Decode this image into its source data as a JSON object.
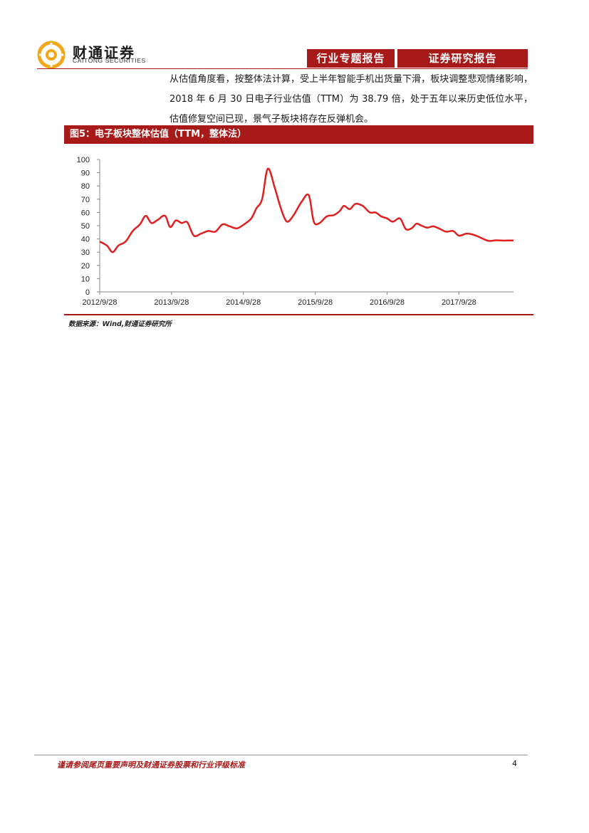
{
  "header": {
    "logo_cn": "财通证券",
    "logo_en": "CAITONG SECURITIES",
    "tab_left": "行业专题报告",
    "tab_right": "证券研究报告"
  },
  "body": {
    "paragraph": "从估值角度看，按整体法计算，受上半年智能手机出货量下滑，板块调整悲观情绪影响，2018 年 6 月 30 日电子行业估值（TTM）为 38.79 倍，处于五年以来历史低位水平，估值修复空间已现，景气子板块将存在反弹机会。"
  },
  "figure": {
    "title": "图5：电子板块整体估值（TTM，整体法）",
    "source": "数据来源：Wind,财通证券研究所"
  },
  "chart_data": {
    "type": "line",
    "title": "",
    "xlabel": "",
    "ylabel": "",
    "ylim": [
      0,
      100
    ],
    "yticks": [
      0,
      10,
      20,
      30,
      40,
      50,
      60,
      70,
      80,
      90,
      100
    ],
    "x_tick_labels": [
      "2012/9/28",
      "2013/9/28",
      "2014/9/28",
      "2015/9/28",
      "2016/9/28",
      "2017/9/28"
    ],
    "x_tick_years": [
      2012.74,
      2013.74,
      2014.74,
      2015.74,
      2016.74,
      2017.74
    ],
    "x_range": [
      2012.74,
      2018.5
    ],
    "grid": false,
    "color": "#e02020",
    "series": [
      {
        "x": [
          2012.74,
          2012.84,
          2012.92,
          2013.0,
          2013.1,
          2013.2,
          2013.3,
          2013.38,
          2013.46,
          2013.55,
          2013.65,
          2013.72,
          2013.8,
          2013.88,
          2013.96,
          2014.05,
          2014.15,
          2014.25,
          2014.35,
          2014.45,
          2014.55,
          2014.65,
          2014.75,
          2014.85,
          2014.92,
          2015.0,
          2015.08,
          2015.18,
          2015.25,
          2015.31,
          2015.36,
          2015.44,
          2015.55,
          2015.65,
          2015.72,
          2015.8,
          2015.9,
          2016.0,
          2016.08,
          2016.14,
          2016.22,
          2016.3,
          2016.4,
          2016.5,
          2016.58,
          2016.66,
          2016.74,
          2016.82,
          2016.92,
          2017.0,
          2017.08,
          2017.15,
          2017.22,
          2017.3,
          2017.38,
          2017.46,
          2017.56,
          2017.66,
          2017.74,
          2017.84,
          2017.92,
          2018.0,
          2018.08,
          2018.16,
          2018.26,
          2018.36,
          2018.42,
          2018.5
        ],
        "y": [
          38,
          35,
          30,
          35,
          38,
          46,
          51,
          57.5,
          52,
          54.5,
          57.5,
          49,
          54,
          52,
          52.5,
          42.5,
          44,
          46,
          45.5,
          51,
          49.5,
          48,
          51,
          55.5,
          63,
          70,
          93,
          78,
          65,
          56,
          53,
          58,
          68,
          73,
          53,
          52,
          57,
          58,
          61,
          65,
          62.5,
          66.5,
          65,
          60,
          60,
          57,
          55.5,
          53,
          55.5,
          47.5,
          48,
          51.5,
          50,
          48.5,
          49.5,
          48,
          45.5,
          46,
          42.5,
          44,
          43.5,
          42,
          40,
          38.5,
          39,
          38.79,
          38.8,
          38.8
        ]
      }
    ]
  },
  "footer": {
    "disclaimer": "谨请参阅尾页重要声明及财通证券股票和行业评级标准",
    "page": "4"
  }
}
